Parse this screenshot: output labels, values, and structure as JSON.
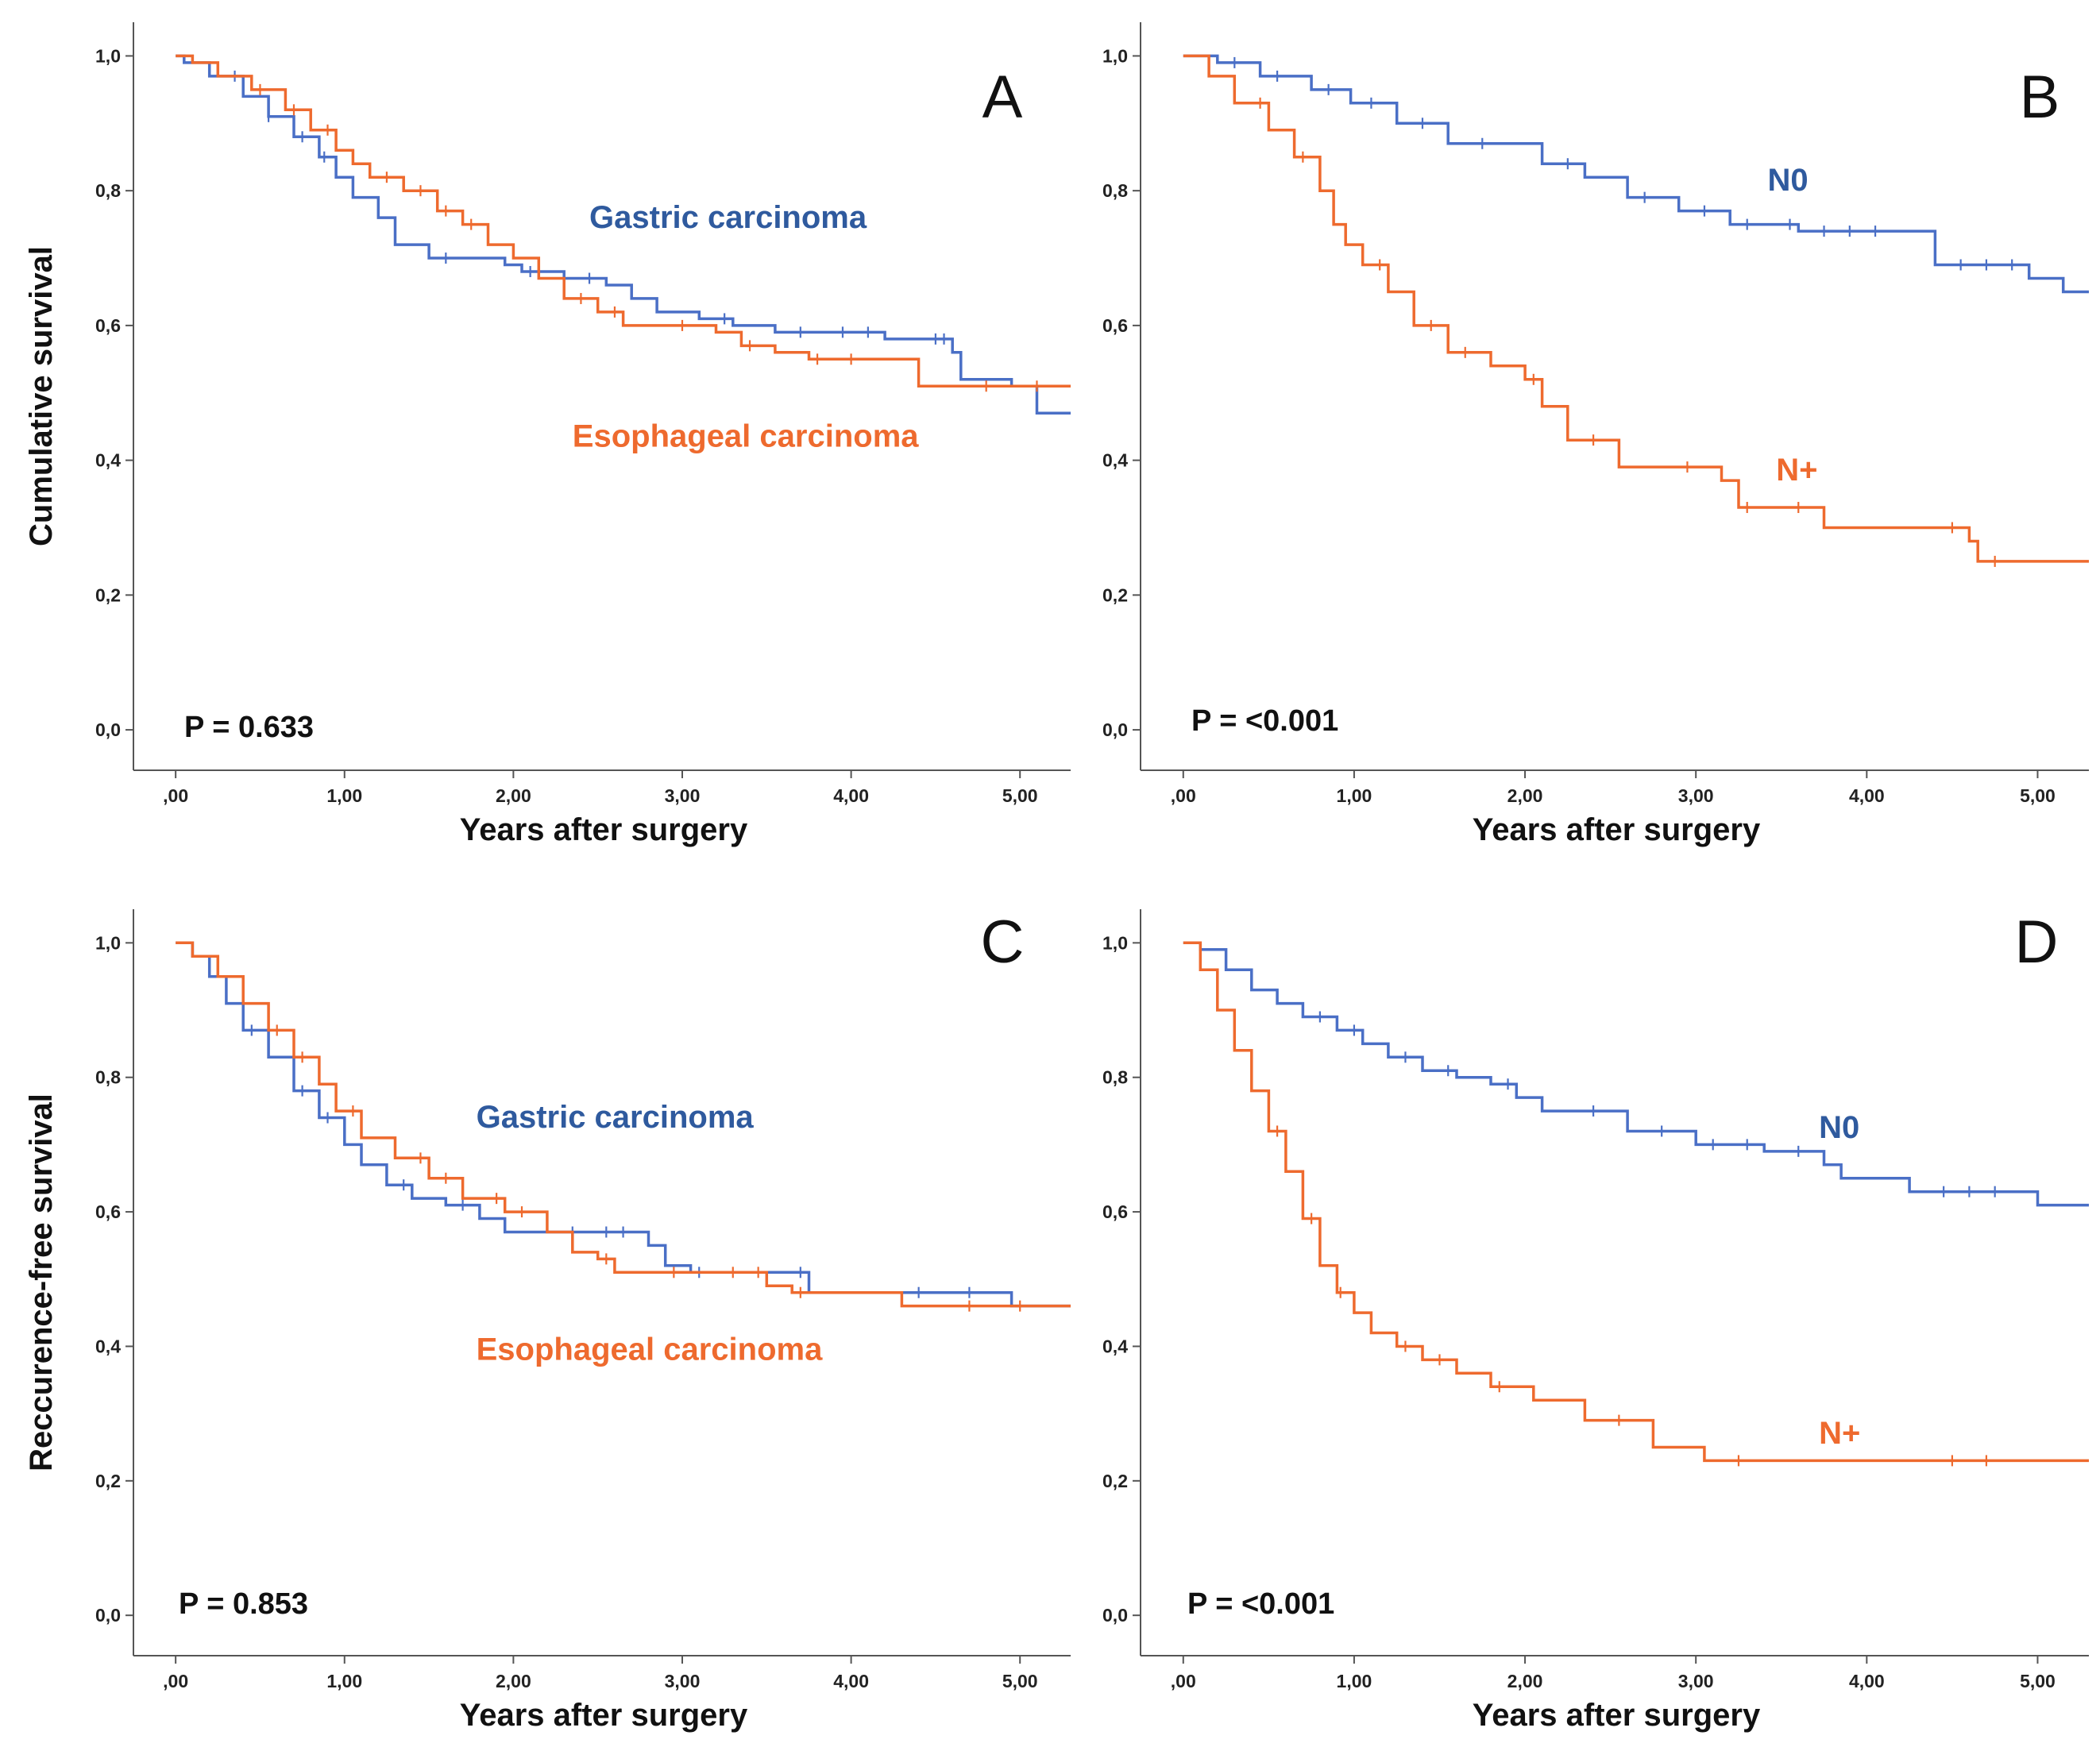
{
  "chart_data": [
    {
      "type": "line",
      "panel": "A",
      "ylabel": "Cumulative survival",
      "xlabel": "Years after surgery",
      "xlim": [
        -0.25,
        5.3
      ],
      "ylim": [
        -0.06,
        1.05
      ],
      "xticks": [
        ",00",
        "1,00",
        "2,00",
        "3,00",
        "4,00",
        "5,00"
      ],
      "yticks": [
        "0,0",
        "0,2",
        "0,4",
        "0,6",
        "0,8",
        "1,0"
      ],
      "p_value": "P = 0.633",
      "series": [
        {
          "name": "Gastric carcinoma",
          "color": "#4a6fc6",
          "label_color": "#2f5a9e",
          "label_pos": [
            2.45,
            0.745
          ],
          "x": [
            0.0,
            0.05,
            0.2,
            0.4,
            0.55,
            0.7,
            0.85,
            0.95,
            1.05,
            1.2,
            1.3,
            1.5,
            1.8,
            1.95,
            2.05,
            2.3,
            2.55,
            2.7,
            2.85,
            3.1,
            3.3,
            3.55,
            4.2,
            4.6,
            4.65,
            4.95,
            5.1,
            5.3
          ],
          "y": [
            1.0,
            0.99,
            0.97,
            0.94,
            0.91,
            0.88,
            0.85,
            0.82,
            0.79,
            0.76,
            0.72,
            0.7,
            0.7,
            0.69,
            0.68,
            0.67,
            0.66,
            0.64,
            0.62,
            0.61,
            0.6,
            0.59,
            0.58,
            0.56,
            0.52,
            0.51,
            0.47,
            0.47
          ],
          "censor_x": [
            0.35,
            0.55,
            0.75,
            0.88,
            1.6,
            2.1,
            2.45,
            3.25,
            3.7,
            3.95,
            4.1,
            4.5,
            4.55
          ]
        },
        {
          "name": "Esophageal carcinoma",
          "color": "#ee6a2e",
          "label_color": "#ee6a2e",
          "label_pos": [
            2.35,
            0.42
          ],
          "x": [
            0.0,
            0.1,
            0.25,
            0.45,
            0.65,
            0.8,
            0.95,
            1.05,
            1.15,
            1.35,
            1.55,
            1.7,
            1.85,
            2.0,
            2.15,
            2.3,
            2.5,
            2.65,
            2.9,
            3.2,
            3.35,
            3.55,
            3.75,
            4.1,
            4.4,
            4.95,
            5.3
          ],
          "y": [
            1.0,
            0.99,
            0.97,
            0.95,
            0.92,
            0.89,
            0.86,
            0.84,
            0.82,
            0.8,
            0.77,
            0.75,
            0.72,
            0.7,
            0.67,
            0.64,
            0.62,
            0.6,
            0.6,
            0.59,
            0.57,
            0.56,
            0.55,
            0.55,
            0.51,
            0.51,
            0.51
          ],
          "censor_x": [
            0.5,
            0.7,
            0.9,
            1.25,
            1.45,
            1.6,
            1.75,
            2.4,
            2.6,
            3.0,
            3.4,
            3.8,
            4.0,
            4.8,
            5.1
          ]
        }
      ]
    },
    {
      "type": "line",
      "panel": "B",
      "ylabel": "",
      "xlabel": "Years after surgery",
      "xlim": [
        -0.25,
        5.3
      ],
      "ylim": [
        -0.06,
        1.05
      ],
      "xticks": [
        ",00",
        "1,00",
        "2,00",
        "3,00",
        "4,00",
        "5,00"
      ],
      "yticks": [
        "0,0",
        "0,2",
        "0,4",
        "0,6",
        "0,8",
        "1,0"
      ],
      "p_value": "P = <0.001",
      "series": [
        {
          "name": "N0",
          "color": "#4a6fc6",
          "label_color": "#2f5a9e",
          "label_pos": [
            3.42,
            0.8
          ],
          "x": [
            0.0,
            0.2,
            0.45,
            0.75,
            0.98,
            1.25,
            1.55,
            2.1,
            2.35,
            2.6,
            2.9,
            3.2,
            3.4,
            3.6,
            4.3,
            4.4,
            4.95,
            5.15,
            5.3
          ],
          "y": [
            1.0,
            0.99,
            0.97,
            0.95,
            0.93,
            0.9,
            0.87,
            0.84,
            0.82,
            0.79,
            0.77,
            0.75,
            0.75,
            0.74,
            0.74,
            0.69,
            0.67,
            0.65,
            0.65
          ],
          "censor_x": [
            0.3,
            0.55,
            0.85,
            1.1,
            1.4,
            1.75,
            2.25,
            2.7,
            3.05,
            3.3,
            3.55,
            3.75,
            3.9,
            4.05,
            4.55,
            4.7,
            4.85
          ]
        },
        {
          "name": "N+",
          "color": "#ee6a2e",
          "label_color": "#ee6a2e",
          "label_pos": [
            3.47,
            0.37
          ],
          "x": [
            0.0,
            0.15,
            0.3,
            0.5,
            0.65,
            0.8,
            0.88,
            0.95,
            1.05,
            1.2,
            1.35,
            1.55,
            1.8,
            2.0,
            2.1,
            2.25,
            2.55,
            3.15,
            3.25,
            3.75,
            4.6,
            4.65,
            5.3
          ],
          "y": [
            1.0,
            0.97,
            0.93,
            0.89,
            0.85,
            0.8,
            0.75,
            0.72,
            0.69,
            0.65,
            0.6,
            0.56,
            0.54,
            0.52,
            0.48,
            0.43,
            0.39,
            0.37,
            0.33,
            0.3,
            0.28,
            0.25,
            0.25
          ],
          "censor_x": [
            0.45,
            0.7,
            1.15,
            1.45,
            1.65,
            2.05,
            2.4,
            2.95,
            3.3,
            3.6,
            4.5,
            4.75
          ]
        }
      ]
    },
    {
      "type": "line",
      "panel": "C",
      "ylabel": "Reccurence-free survival",
      "xlabel": "Years after surgery",
      "xlim": [
        -0.25,
        5.3
      ],
      "ylim": [
        -0.06,
        1.05
      ],
      "xticks": [
        ",00",
        "1,00",
        "2,00",
        "3,00",
        "4,00",
        "5,00"
      ],
      "yticks": [
        "0,0",
        "0,2",
        "0,4",
        "0,6",
        "0,8",
        "1,0"
      ],
      "p_value": "P = 0.853",
      "series": [
        {
          "name": "Gastric carcinoma",
          "color": "#4a6fc6",
          "label_color": "#2f5a9e",
          "label_pos": [
            1.78,
            0.725
          ],
          "x": [
            0.0,
            0.1,
            0.2,
            0.3,
            0.4,
            0.55,
            0.7,
            0.85,
            1.0,
            1.1,
            1.25,
            1.4,
            1.6,
            1.8,
            1.95,
            2.3,
            2.8,
            2.9,
            3.05,
            3.4,
            3.75,
            3.9,
            4.5,
            4.95,
            5.3
          ],
          "y": [
            1.0,
            0.98,
            0.95,
            0.91,
            0.87,
            0.83,
            0.78,
            0.74,
            0.7,
            0.67,
            0.64,
            0.62,
            0.61,
            0.59,
            0.57,
            0.57,
            0.55,
            0.52,
            0.51,
            0.51,
            0.48,
            0.48,
            0.48,
            0.46,
            0.46
          ],
          "censor_x": [
            0.45,
            0.75,
            0.9,
            1.35,
            1.7,
            2.35,
            2.55,
            2.65,
            3.1,
            3.7,
            4.4,
            4.7
          ]
        },
        {
          "name": "Esophageal carcinoma",
          "color": "#ee6a2e",
          "label_color": "#ee6a2e",
          "label_pos": [
            1.78,
            0.38
          ],
          "x": [
            0.0,
            0.1,
            0.25,
            0.4,
            0.55,
            0.7,
            0.85,
            0.95,
            1.1,
            1.3,
            1.5,
            1.7,
            1.95,
            2.2,
            2.35,
            2.5,
            2.6,
            3.0,
            3.2,
            3.5,
            3.65,
            3.9,
            4.3,
            5.3
          ],
          "y": [
            1.0,
            0.98,
            0.95,
            0.91,
            0.87,
            0.83,
            0.79,
            0.75,
            0.71,
            0.68,
            0.65,
            0.62,
            0.6,
            0.57,
            0.54,
            0.53,
            0.51,
            0.51,
            0.51,
            0.49,
            0.48,
            0.48,
            0.46,
            0.46
          ],
          "censor_x": [
            0.6,
            0.75,
            1.05,
            1.45,
            1.6,
            1.9,
            2.05,
            2.55,
            2.95,
            3.3,
            3.45,
            3.7,
            4.7,
            5.0
          ]
        }
      ]
    },
    {
      "type": "line",
      "panel": "D",
      "ylabel": "",
      "xlabel": "Years after surgery",
      "xlim": [
        -0.25,
        5.3
      ],
      "ylim": [
        -0.06,
        1.05
      ],
      "xticks": [
        ",00",
        "1,00",
        "2,00",
        "3,00",
        "4,00",
        "5,00"
      ],
      "yticks": [
        "0,0",
        "0,2",
        "0,4",
        "0,6",
        "0,8",
        "1,0"
      ],
      "p_value": "P = <0.001",
      "series": [
        {
          "name": "N0",
          "color": "#4a6fc6",
          "label_color": "#2f5a9e",
          "label_pos": [
            3.72,
            0.71
          ],
          "x": [
            0.0,
            0.1,
            0.25,
            0.4,
            0.55,
            0.7,
            0.9,
            1.05,
            1.2,
            1.4,
            1.6,
            1.8,
            1.95,
            2.1,
            2.3,
            2.6,
            3.0,
            3.4,
            3.75,
            3.85,
            4.25,
            4.9,
            5.0,
            5.3
          ],
          "y": [
            1.0,
            0.99,
            0.96,
            0.93,
            0.91,
            0.89,
            0.87,
            0.85,
            0.83,
            0.81,
            0.8,
            0.79,
            0.77,
            0.75,
            0.75,
            0.72,
            0.7,
            0.69,
            0.67,
            0.65,
            0.63,
            0.63,
            0.61,
            0.61
          ],
          "censor_x": [
            0.8,
            1.0,
            1.3,
            1.55,
            1.9,
            2.4,
            2.8,
            3.1,
            3.3,
            3.6,
            4.45,
            4.6,
            4.75
          ]
        },
        {
          "name": "N+",
          "color": "#ee6a2e",
          "label_color": "#ee6a2e",
          "label_pos": [
            3.72,
            0.255
          ],
          "x": [
            0.0,
            0.1,
            0.2,
            0.3,
            0.4,
            0.5,
            0.6,
            0.7,
            0.8,
            0.9,
            1.0,
            1.1,
            1.25,
            1.4,
            1.6,
            1.8,
            2.05,
            2.35,
            2.75,
            3.05,
            3.5,
            5.3
          ],
          "y": [
            1.0,
            0.96,
            0.9,
            0.84,
            0.78,
            0.72,
            0.66,
            0.59,
            0.52,
            0.48,
            0.45,
            0.42,
            0.4,
            0.38,
            0.36,
            0.34,
            0.32,
            0.29,
            0.25,
            0.23,
            0.23,
            0.23
          ],
          "censor_x": [
            0.55,
            0.75,
            0.92,
            1.3,
            1.5,
            1.85,
            2.55,
            3.25,
            4.5,
            4.7
          ]
        }
      ]
    }
  ]
}
